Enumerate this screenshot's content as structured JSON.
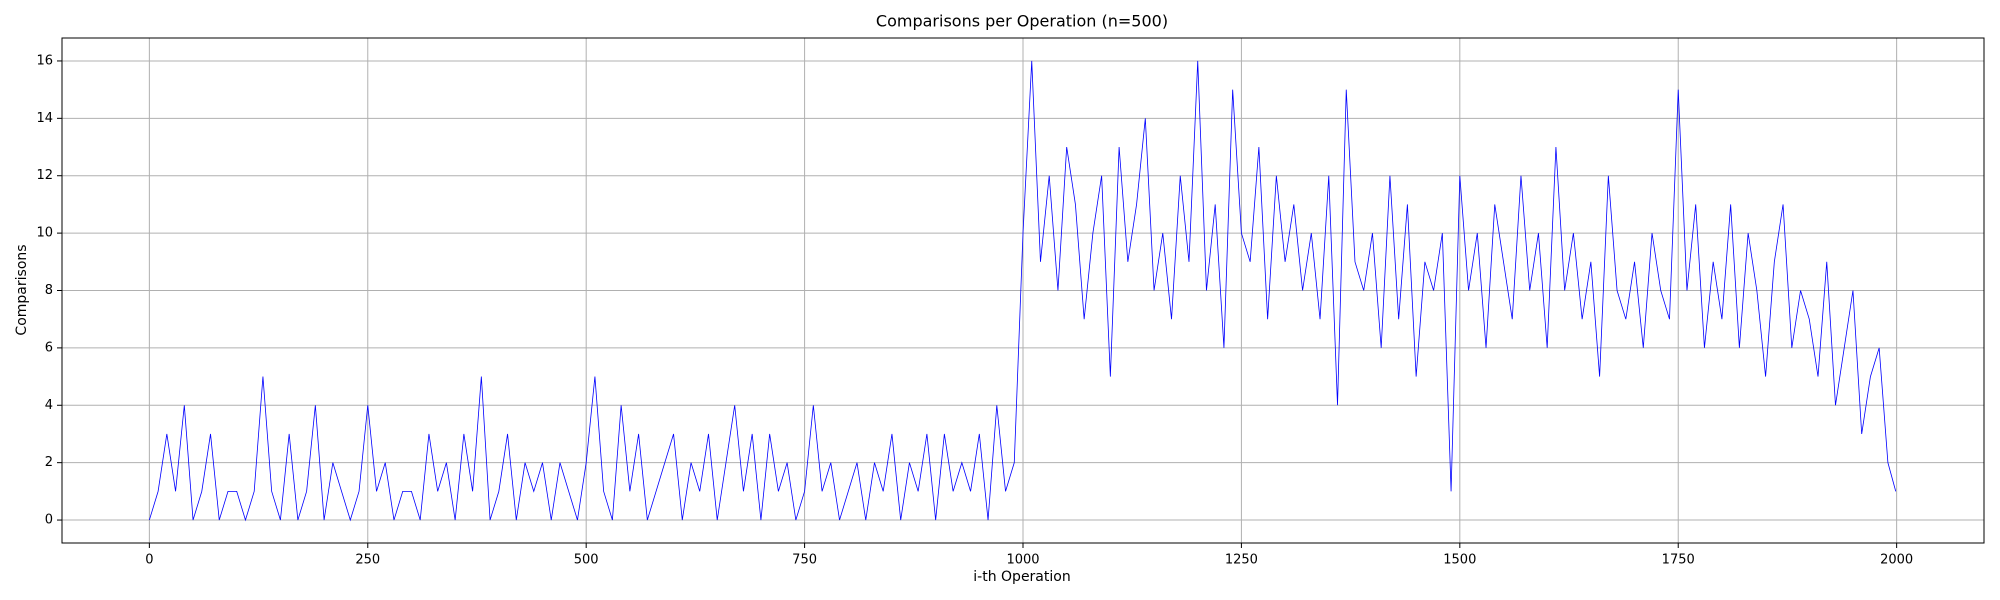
{
  "chart_data": {
    "type": "line",
    "title": "Comparisons per Operation (n=500)",
    "xlabel": "i-th Operation",
    "ylabel": "Comparisons",
    "x": [
      0,
      10,
      20,
      30,
      40,
      50,
      60,
      70,
      80,
      90,
      100,
      110,
      120,
      130,
      140,
      150,
      160,
      170,
      180,
      190,
      200,
      210,
      220,
      230,
      240,
      250,
      260,
      270,
      280,
      290,
      300,
      310,
      320,
      330,
      340,
      350,
      360,
      370,
      380,
      390,
      400,
      410,
      420,
      430,
      440,
      450,
      460,
      470,
      480,
      490,
      500,
      510,
      520,
      530,
      540,
      550,
      560,
      570,
      580,
      590,
      600,
      610,
      620,
      630,
      640,
      650,
      660,
      670,
      680,
      690,
      700,
      710,
      720,
      730,
      740,
      750,
      760,
      770,
      780,
      790,
      800,
      810,
      820,
      830,
      840,
      850,
      860,
      870,
      880,
      890,
      900,
      910,
      920,
      930,
      940,
      950,
      960,
      970,
      980,
      990,
      1000,
      1010,
      1020,
      1030,
      1040,
      1050,
      1060,
      1070,
      1080,
      1090,
      1100,
      1110,
      1120,
      1130,
      1140,
      1150,
      1160,
      1170,
      1180,
      1190,
      1200,
      1210,
      1220,
      1230,
      1240,
      1250,
      1260,
      1270,
      1280,
      1290,
      1300,
      1310,
      1320,
      1330,
      1340,
      1350,
      1360,
      1370,
      1380,
      1390,
      1400,
      1410,
      1420,
      1430,
      1440,
      1450,
      1460,
      1470,
      1480,
      1490,
      1500,
      1510,
      1520,
      1530,
      1540,
      1550,
      1560,
      1570,
      1580,
      1590,
      1600,
      1610,
      1620,
      1630,
      1640,
      1650,
      1660,
      1670,
      1680,
      1690,
      1700,
      1710,
      1720,
      1730,
      1740,
      1750,
      1760,
      1770,
      1780,
      1790,
      1800,
      1810,
      1820,
      1830,
      1840,
      1850,
      1860,
      1870,
      1880,
      1890,
      1900,
      1910,
      1920,
      1930,
      1940,
      1950,
      1960,
      1970,
      1980,
      1990,
      1999
    ],
    "series": [
      {
        "name": "Comparisons",
        "color": "#0000ff",
        "values": [
          0,
          1,
          3,
          1,
          4,
          0,
          1,
          3,
          0,
          1,
          1,
          0,
          1,
          5,
          1,
          0,
          3,
          0,
          1,
          4,
          0,
          2,
          1,
          0,
          1,
          4,
          1,
          2,
          0,
          1,
          1,
          0,
          3,
          1,
          2,
          0,
          3,
          1,
          5,
          0,
          1,
          3,
          0,
          2,
          1,
          2,
          0,
          2,
          1,
          0,
          2,
          5,
          1,
          0,
          4,
          1,
          3,
          0,
          1,
          2,
          3,
          0,
          2,
          1,
          3,
          0,
          2,
          4,
          1,
          3,
          0,
          3,
          1,
          2,
          0,
          1,
          4,
          1,
          2,
          0,
          1,
          2,
          0,
          2,
          1,
          3,
          0,
          2,
          1,
          3,
          0,
          3,
          1,
          2,
          1,
          3,
          0,
          4,
          1,
          2,
          10,
          16,
          9,
          12,
          8,
          13,
          11,
          7,
          10,
          12,
          5,
          13,
          9,
          11,
          14,
          8,
          10,
          7,
          12,
          9,
          16,
          8,
          11,
          6,
          15,
          10,
          9,
          13,
          7,
          12,
          9,
          11,
          8,
          10,
          7,
          12,
          4,
          15,
          9,
          8,
          10,
          6,
          12,
          7,
          11,
          5,
          9,
          8,
          10,
          1,
          12,
          8,
          10,
          6,
          11,
          9,
          7,
          12,
          8,
          10,
          6,
          13,
          8,
          10,
          7,
          9,
          5,
          12,
          8,
          7,
          9,
          6,
          10,
          8,
          7,
          15,
          8,
          11,
          6,
          9,
          7,
          11,
          6,
          10,
          8,
          5,
          9,
          11,
          6,
          8,
          7,
          5,
          9,
          4,
          6,
          8,
          3,
          5,
          6,
          2,
          1
        ]
      }
    ],
    "xlim": [
      -100,
      2100
    ],
    "ylim": [
      -0.8,
      16.8
    ],
    "xticks": [
      0,
      250,
      500,
      750,
      1000,
      1250,
      1500,
      1750,
      2000
    ],
    "yticks": [
      0,
      2,
      4,
      6,
      8,
      10,
      12,
      14,
      16
    ],
    "grid": true
  }
}
